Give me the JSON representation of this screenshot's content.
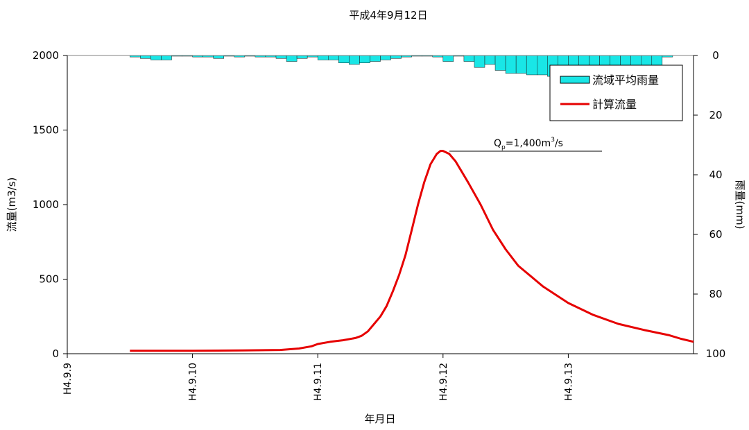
{
  "chart_data": {
    "type": "line",
    "title": "平成4年9月12日",
    "xlabel": "年月日",
    "ylabel_left": "流量(m3/s)",
    "ylabel_right": "雨量(mm)",
    "x_ticks": [
      "H4.9.9",
      "H4.9.10",
      "H4.9.11",
      "H4.9.12",
      "H4.9.13"
    ],
    "x_range_days": [
      0,
      5
    ],
    "ylim_left": [
      0,
      2000
    ],
    "y_ticks_left": [
      0,
      500,
      1000,
      1500,
      2000
    ],
    "ylim_right": [
      100,
      0
    ],
    "y_ticks_right": [
      0,
      20,
      40,
      60,
      80,
      100
    ],
    "grid": false,
    "legend_position": "top-right",
    "annotation": {
      "prefix": "Q",
      "subscript": "p",
      "main": "=1,400m",
      "superscript": "3",
      "suffix": "/s",
      "value": 1400
    },
    "series": [
      {
        "name": "流域平均雨量",
        "type": "bar",
        "axis": "right",
        "color": "#19e6e6",
        "bin_hours": 2,
        "start_hour": 12,
        "values": [
          0.5,
          1,
          1.5,
          1.5,
          0,
          0,
          0.5,
          0.5,
          1,
          0,
          0.5,
          0,
          0.5,
          0.5,
          1,
          2,
          1,
          0.5,
          1.5,
          1.5,
          2.5,
          3,
          2.5,
          2,
          1.5,
          1,
          0.5,
          0,
          0,
          0.5,
          2,
          0,
          2,
          4,
          3,
          5,
          6,
          6,
          6.5,
          6.5,
          7,
          6.5,
          8,
          11,
          11,
          12,
          9,
          6.5,
          4,
          6.5,
          4,
          0.5
        ]
      },
      {
        "name": "計算流量",
        "type": "line",
        "axis": "left",
        "color": "#e60000",
        "x_days": [
          0.5,
          1.0,
          1.4,
          1.7,
          1.85,
          1.95,
          2.0,
          2.1,
          2.2,
          2.3,
          2.35,
          2.4,
          2.45,
          2.5,
          2.55,
          2.6,
          2.65,
          2.7,
          2.75,
          2.8,
          2.85,
          2.9,
          2.95,
          2.98,
          3.0,
          3.05,
          3.1,
          3.15,
          3.2,
          3.3,
          3.4,
          3.5,
          3.6,
          3.8,
          4.0,
          4.2,
          4.4,
          4.6,
          4.8,
          4.9,
          5.0
        ],
        "values": [
          20,
          20,
          22,
          25,
          35,
          50,
          65,
          80,
          90,
          105,
          120,
          150,
          200,
          250,
          320,
          420,
          530,
          660,
          830,
          1000,
          1150,
          1270,
          1340,
          1360,
          1360,
          1340,
          1290,
          1220,
          1150,
          1000,
          830,
          700,
          590,
          450,
          340,
          260,
          200,
          160,
          125,
          100,
          80
        ]
      }
    ]
  }
}
